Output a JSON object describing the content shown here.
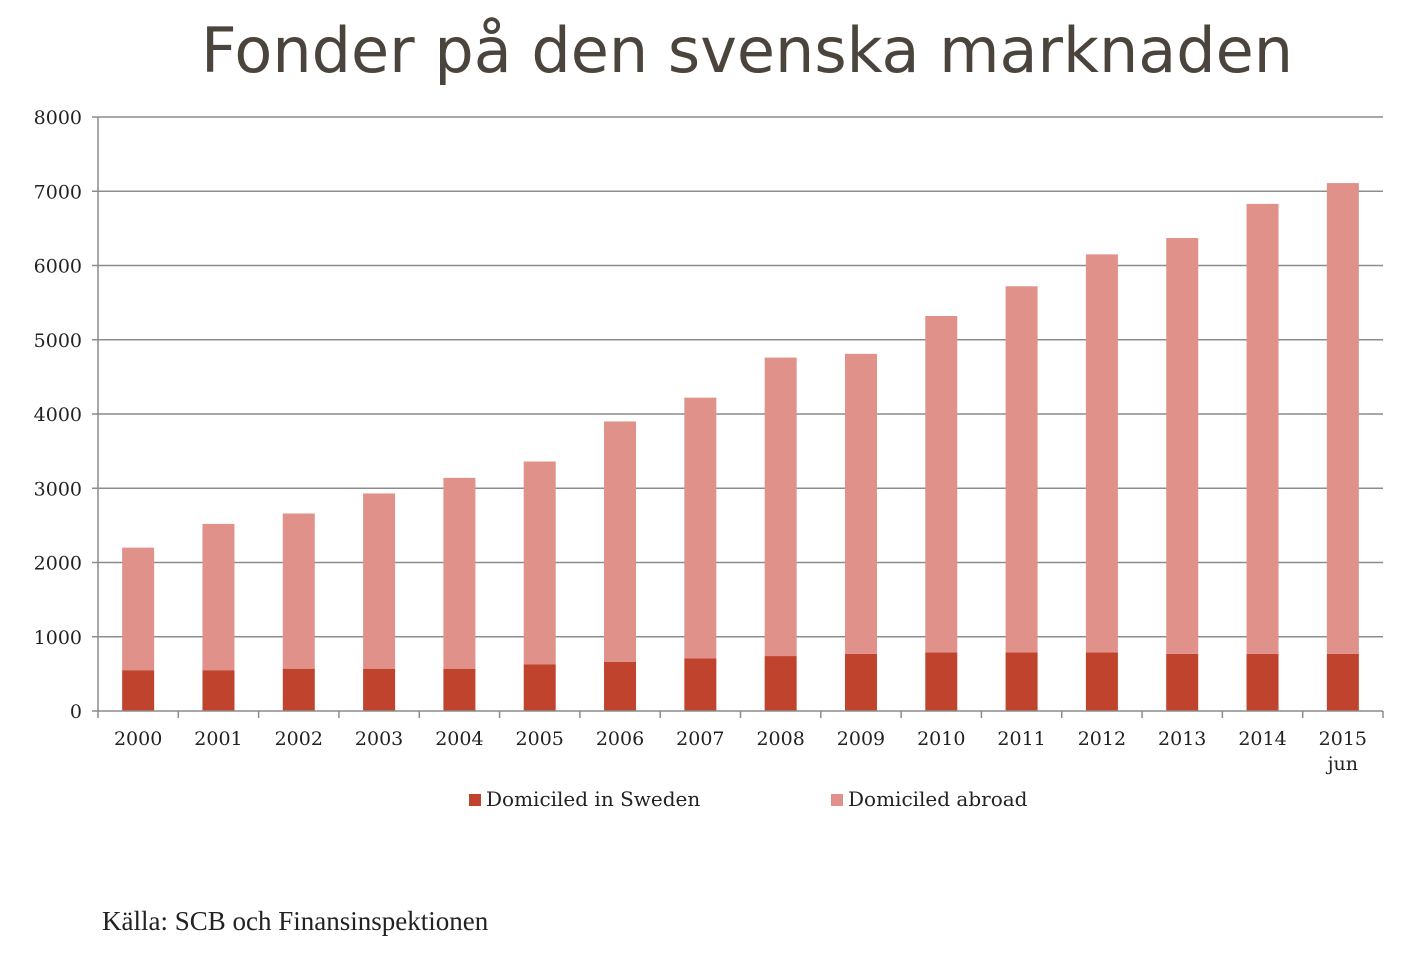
{
  "chart_data": {
    "type": "bar",
    "stacked": true,
    "title": "Fonder på den svenska marknaden",
    "categories": [
      "2000",
      "2001",
      "2002",
      "2003",
      "2004",
      "2005",
      "2006",
      "2007",
      "2008",
      "2009",
      "2010",
      "2011",
      "2012",
      "2013",
      "2014",
      "2015"
    ],
    "category_sublabels": [
      "",
      "",
      "",
      "",
      "",
      "",
      "",
      "",
      "",
      "",
      "",
      "",
      "",
      "",
      "",
      "jun"
    ],
    "series": [
      {
        "name": "Domiciled in Sweden",
        "color": "#c0432e",
        "values": [
          550,
          550,
          570,
          570,
          570,
          630,
          660,
          710,
          740,
          770,
          790,
          790,
          790,
          770,
          770,
          770
        ]
      },
      {
        "name": "Domiciled abroad",
        "color": "#e0918a",
        "values": [
          1650,
          1970,
          2090,
          2360,
          2570,
          2730,
          3240,
          3510,
          4020,
          4040,
          4530,
          4930,
          5360,
          5600,
          6060,
          6340
        ]
      }
    ],
    "ylim": [
      0,
      8000
    ],
    "yticks": [
      "0",
      "1000",
      "2000",
      "3000",
      "4000",
      "5000",
      "6000",
      "7000",
      "8000"
    ],
    "grid": true,
    "legend": "bottom",
    "source": "Källa: SCB och Finansinspektionen"
  }
}
